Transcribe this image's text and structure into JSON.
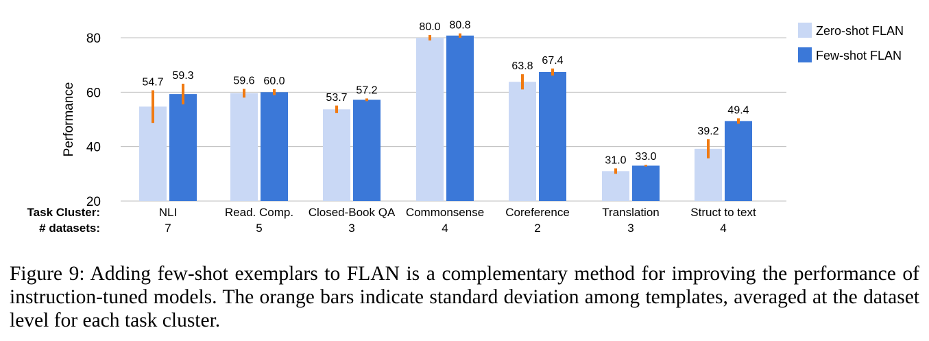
{
  "chart_data": {
    "type": "bar",
    "ylabel": "Performance",
    "ylim": [
      20,
      85
    ],
    "yticks": [
      20,
      40,
      60,
      80
    ],
    "grid": true,
    "legend_position": "top-right",
    "row_labels": {
      "categories": "Task Cluster:",
      "counts": "# datasets:"
    },
    "categories": [
      "NLI",
      "Read. Comp.",
      "Closed-Book QA",
      "Commonsense",
      "Coreference",
      "Translation",
      "Struct to text"
    ],
    "dataset_counts": [
      "7",
      "5",
      "3",
      "4",
      "2",
      "3",
      "4"
    ],
    "series": [
      {
        "name": "Zero-shot FLAN",
        "color": "#c9d8f5",
        "values": [
          54.7,
          59.6,
          53.7,
          80.0,
          63.8,
          31.0,
          39.2
        ],
        "labels": [
          "54.7",
          "59.6",
          "53.7",
          "80.0",
          "63.8",
          "31.0",
          "39.2"
        ],
        "std": [
          6.0,
          1.6,
          1.4,
          1.0,
          2.8,
          1.0,
          3.5
        ]
      },
      {
        "name": "Few-shot FLAN",
        "color": "#3b78d8",
        "values": [
          59.3,
          60.0,
          57.2,
          80.8,
          67.4,
          33.0,
          49.4
        ],
        "labels": [
          "59.3",
          "60.0",
          "57.2",
          "80.8",
          "67.4",
          "33.0",
          "49.4"
        ],
        "std": [
          3.8,
          1.1,
          0.5,
          0.8,
          1.3,
          0.3,
          1.0
        ]
      }
    ],
    "error_bar_color": "#f07a12"
  },
  "caption": "Figure 9:   Adding few-shot exemplars to FLAN is a complementary method for improving the performance of instruction-tuned models.  The orange bars indicate standard deviation among templates, averaged at the dataset level for each task cluster."
}
